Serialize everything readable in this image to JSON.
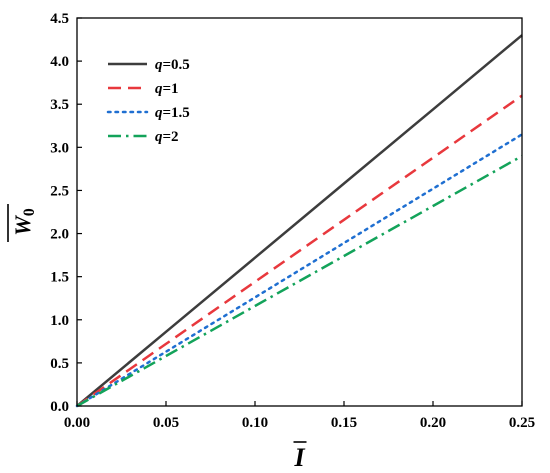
{
  "chart_data": {
    "type": "line",
    "title": "",
    "xlabel": "I",
    "xlabel_overline": true,
    "ylabel_main": "W",
    "ylabel_sub": "0",
    "ylabel_overline": true,
    "xlim": [
      0,
      0.25
    ],
    "ylim": [
      0,
      4.5
    ],
    "xticks": [
      0.0,
      0.05,
      0.1,
      0.15,
      0.2,
      0.25
    ],
    "xtick_labels": [
      "0.00",
      "0.05",
      "0.10",
      "0.15",
      "0.20",
      "0.25"
    ],
    "yticks": [
      0.0,
      0.5,
      1.0,
      1.5,
      2.0,
      2.5,
      3.0,
      3.5,
      4.0,
      4.5
    ],
    "ytick_labels": [
      "0.0",
      "0.5",
      "1.0",
      "1.5",
      "2.0",
      "2.5",
      "3.0",
      "3.5",
      "4.0",
      "4.5"
    ],
    "grid": false,
    "legend_position": "top-left",
    "series": [
      {
        "name": "q=0.5",
        "var": "q",
        "value": "=0.5",
        "color": "#3d3d3d",
        "dash": "solid",
        "x": [
          0.0,
          0.05,
          0.1,
          0.15,
          0.2,
          0.25
        ],
        "y": [
          0.0,
          0.86,
          1.72,
          2.58,
          3.44,
          4.3
        ]
      },
      {
        "name": "q=1",
        "var": "q",
        "value": "=1",
        "color": "#e8383d",
        "dash": "dash",
        "x": [
          0.0,
          0.05,
          0.1,
          0.15,
          0.2,
          0.25
        ],
        "y": [
          0.0,
          0.72,
          1.44,
          2.16,
          2.88,
          3.6
        ]
      },
      {
        "name": "q=1.5",
        "var": "q",
        "value": "=1.5",
        "color": "#1f6fd1",
        "dash": "dot",
        "x": [
          0.0,
          0.05,
          0.1,
          0.15,
          0.2,
          0.25
        ],
        "y": [
          0.0,
          0.63,
          1.26,
          1.89,
          2.52,
          3.15
        ]
      },
      {
        "name": "q=2",
        "var": "q",
        "value": "=2",
        "color": "#13a35a",
        "dash": "dashdot",
        "x": [
          0.0,
          0.05,
          0.1,
          0.15,
          0.2,
          0.25
        ],
        "y": [
          0.0,
          0.58,
          1.16,
          1.74,
          2.32,
          2.9
        ]
      }
    ]
  }
}
